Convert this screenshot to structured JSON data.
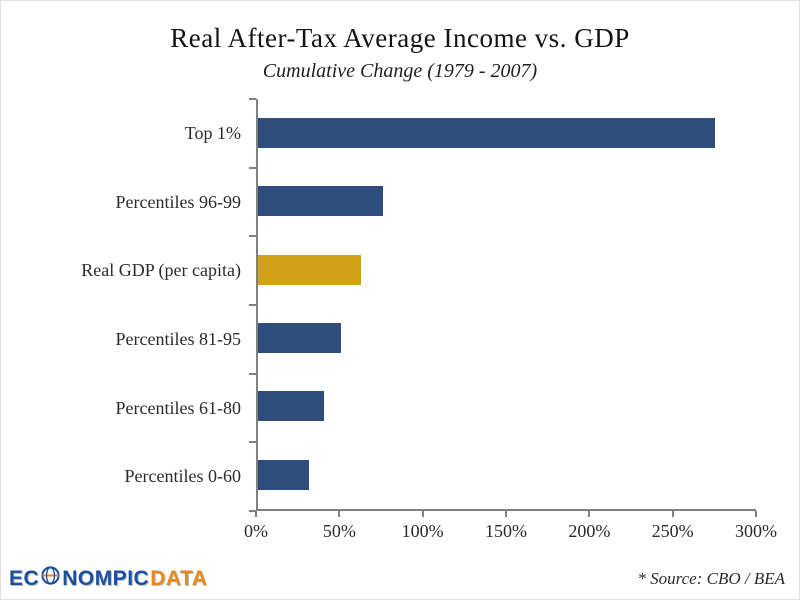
{
  "title": "Real After-Tax Average Income vs. GDP",
  "subtitle": "Cumulative Change (1979 - 2007)",
  "chart_data": {
    "type": "bar",
    "orientation": "horizontal",
    "title": "Real After-Tax Average Income vs. GDP",
    "subtitle": "Cumulative Change (1979 - 2007)",
    "categories": [
      "Top 1%",
      "Percentiles 96-99",
      "Real GDP (per capita)",
      "Percentiles 81-95",
      "Percentiles 61-80",
      "Percentiles 0-60"
    ],
    "values": [
      275,
      75,
      62,
      50,
      40,
      31
    ],
    "bar_colors": [
      "#2e4c7c",
      "#2e4c7c",
      "#d1a119",
      "#2e4c7c",
      "#2e4c7c",
      "#2e4c7c"
    ],
    "xlim": [
      0,
      300
    ],
    "x_ticks": [
      0,
      50,
      100,
      150,
      200,
      250,
      300
    ],
    "x_tick_labels": [
      "0%",
      "50%",
      "100%",
      "150%",
      "200%",
      "250%",
      "300%"
    ],
    "xlabel": "",
    "ylabel": "",
    "grid": false,
    "legend": false
  },
  "footer": {
    "logo": {
      "part1": "EC",
      "part2": "NOMPIC",
      "part3": "DATA"
    },
    "source": "* Source: CBO / BEA"
  },
  "colors": {
    "bar_blue": "#2e4c7c",
    "bar_gold": "#d1a119",
    "axis_gray": "#808080",
    "logo_blue": "#1b4fa0",
    "logo_orange": "#e8891e"
  }
}
